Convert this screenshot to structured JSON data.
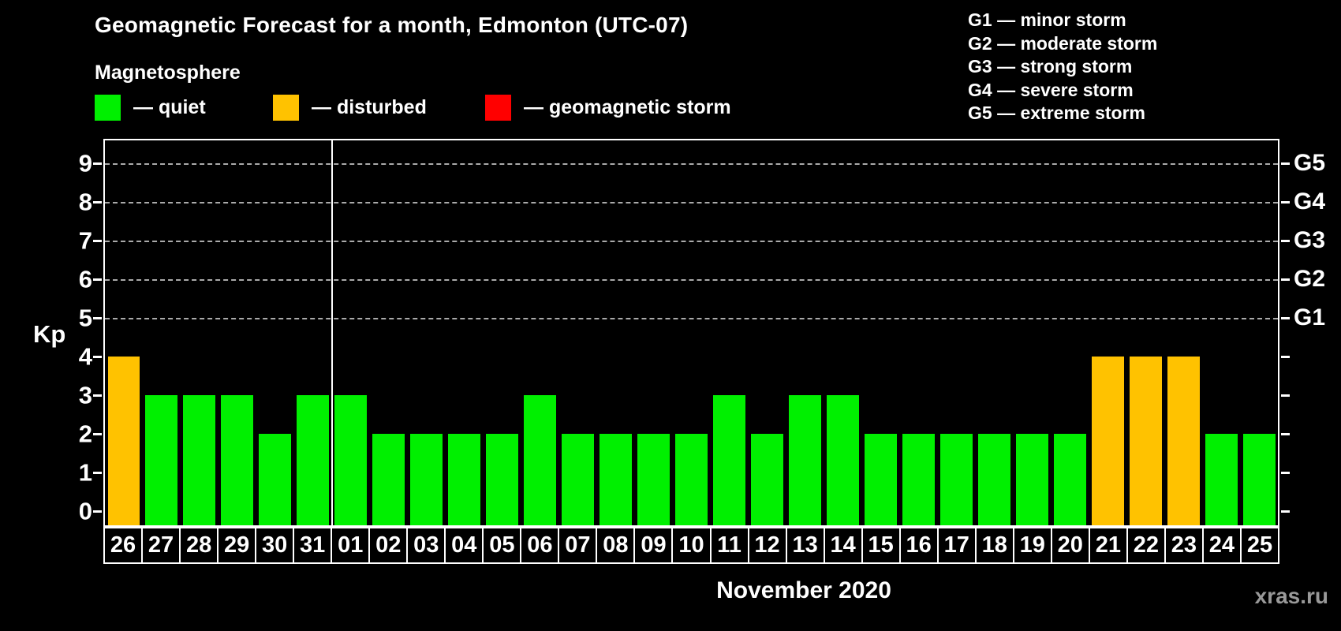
{
  "page": {
    "title": "Geomagnetic Forecast for a month, Edmonton (UTC-07)",
    "subtitle": "Magnetosphere",
    "watermark": "xras.ru"
  },
  "legend": {
    "items": [
      {
        "status": "quiet",
        "label": "— quiet",
        "color": "#00f000"
      },
      {
        "status": "disturbed",
        "label": "— disturbed",
        "color": "#ffc200"
      },
      {
        "status": "storm",
        "label": "— geomagnetic storm",
        "color": "#ff0000"
      }
    ]
  },
  "g_legend": {
    "items": [
      "G1 — minor storm",
      "G2 — moderate storm",
      "G3 — strong storm",
      "G4 — severe storm",
      "G5 — extreme storm"
    ]
  },
  "chart_data": {
    "type": "bar",
    "ylabel": "Kp",
    "xlabel": "November 2020",
    "ylim": [
      0,
      9.7
    ],
    "yticks": [
      0,
      1,
      2,
      3,
      4,
      5,
      6,
      7,
      8,
      9
    ],
    "grid": "horizontal dashed lines at storm levels only",
    "gridlines_at_kp": [
      5,
      6,
      7,
      8,
      9
    ],
    "right_axis": [
      {
        "kp": 5,
        "label": "G1"
      },
      {
        "kp": 6,
        "label": "G2"
      },
      {
        "kp": 7,
        "label": "G3"
      },
      {
        "kp": 8,
        "label": "G4"
      },
      {
        "kp": 9,
        "label": "G5"
      }
    ],
    "legend_position": "top-left",
    "month_separator_after_index": 5,
    "categories": [
      "26",
      "27",
      "28",
      "29",
      "30",
      "31",
      "01",
      "02",
      "03",
      "04",
      "05",
      "06",
      "07",
      "08",
      "09",
      "10",
      "11",
      "12",
      "13",
      "14",
      "15",
      "16",
      "17",
      "18",
      "19",
      "20",
      "21",
      "22",
      "23",
      "24",
      "25"
    ],
    "values": [
      4,
      3,
      3,
      3,
      2,
      3,
      3,
      2,
      2,
      2,
      2,
      3,
      2,
      2,
      2,
      2,
      3,
      2,
      3,
      3,
      2,
      2,
      2,
      2,
      2,
      2,
      4,
      4,
      4,
      2,
      2
    ],
    "statuses": [
      "disturbed",
      "quiet",
      "quiet",
      "quiet",
      "quiet",
      "quiet",
      "quiet",
      "quiet",
      "quiet",
      "quiet",
      "quiet",
      "quiet",
      "quiet",
      "quiet",
      "quiet",
      "quiet",
      "quiet",
      "quiet",
      "quiet",
      "quiet",
      "quiet",
      "quiet",
      "quiet",
      "quiet",
      "quiet",
      "quiet",
      "disturbed",
      "disturbed",
      "disturbed",
      "quiet",
      "quiet"
    ],
    "colors": {
      "quiet": "#00f000",
      "disturbed": "#ffc200",
      "storm": "#ff0000"
    }
  }
}
